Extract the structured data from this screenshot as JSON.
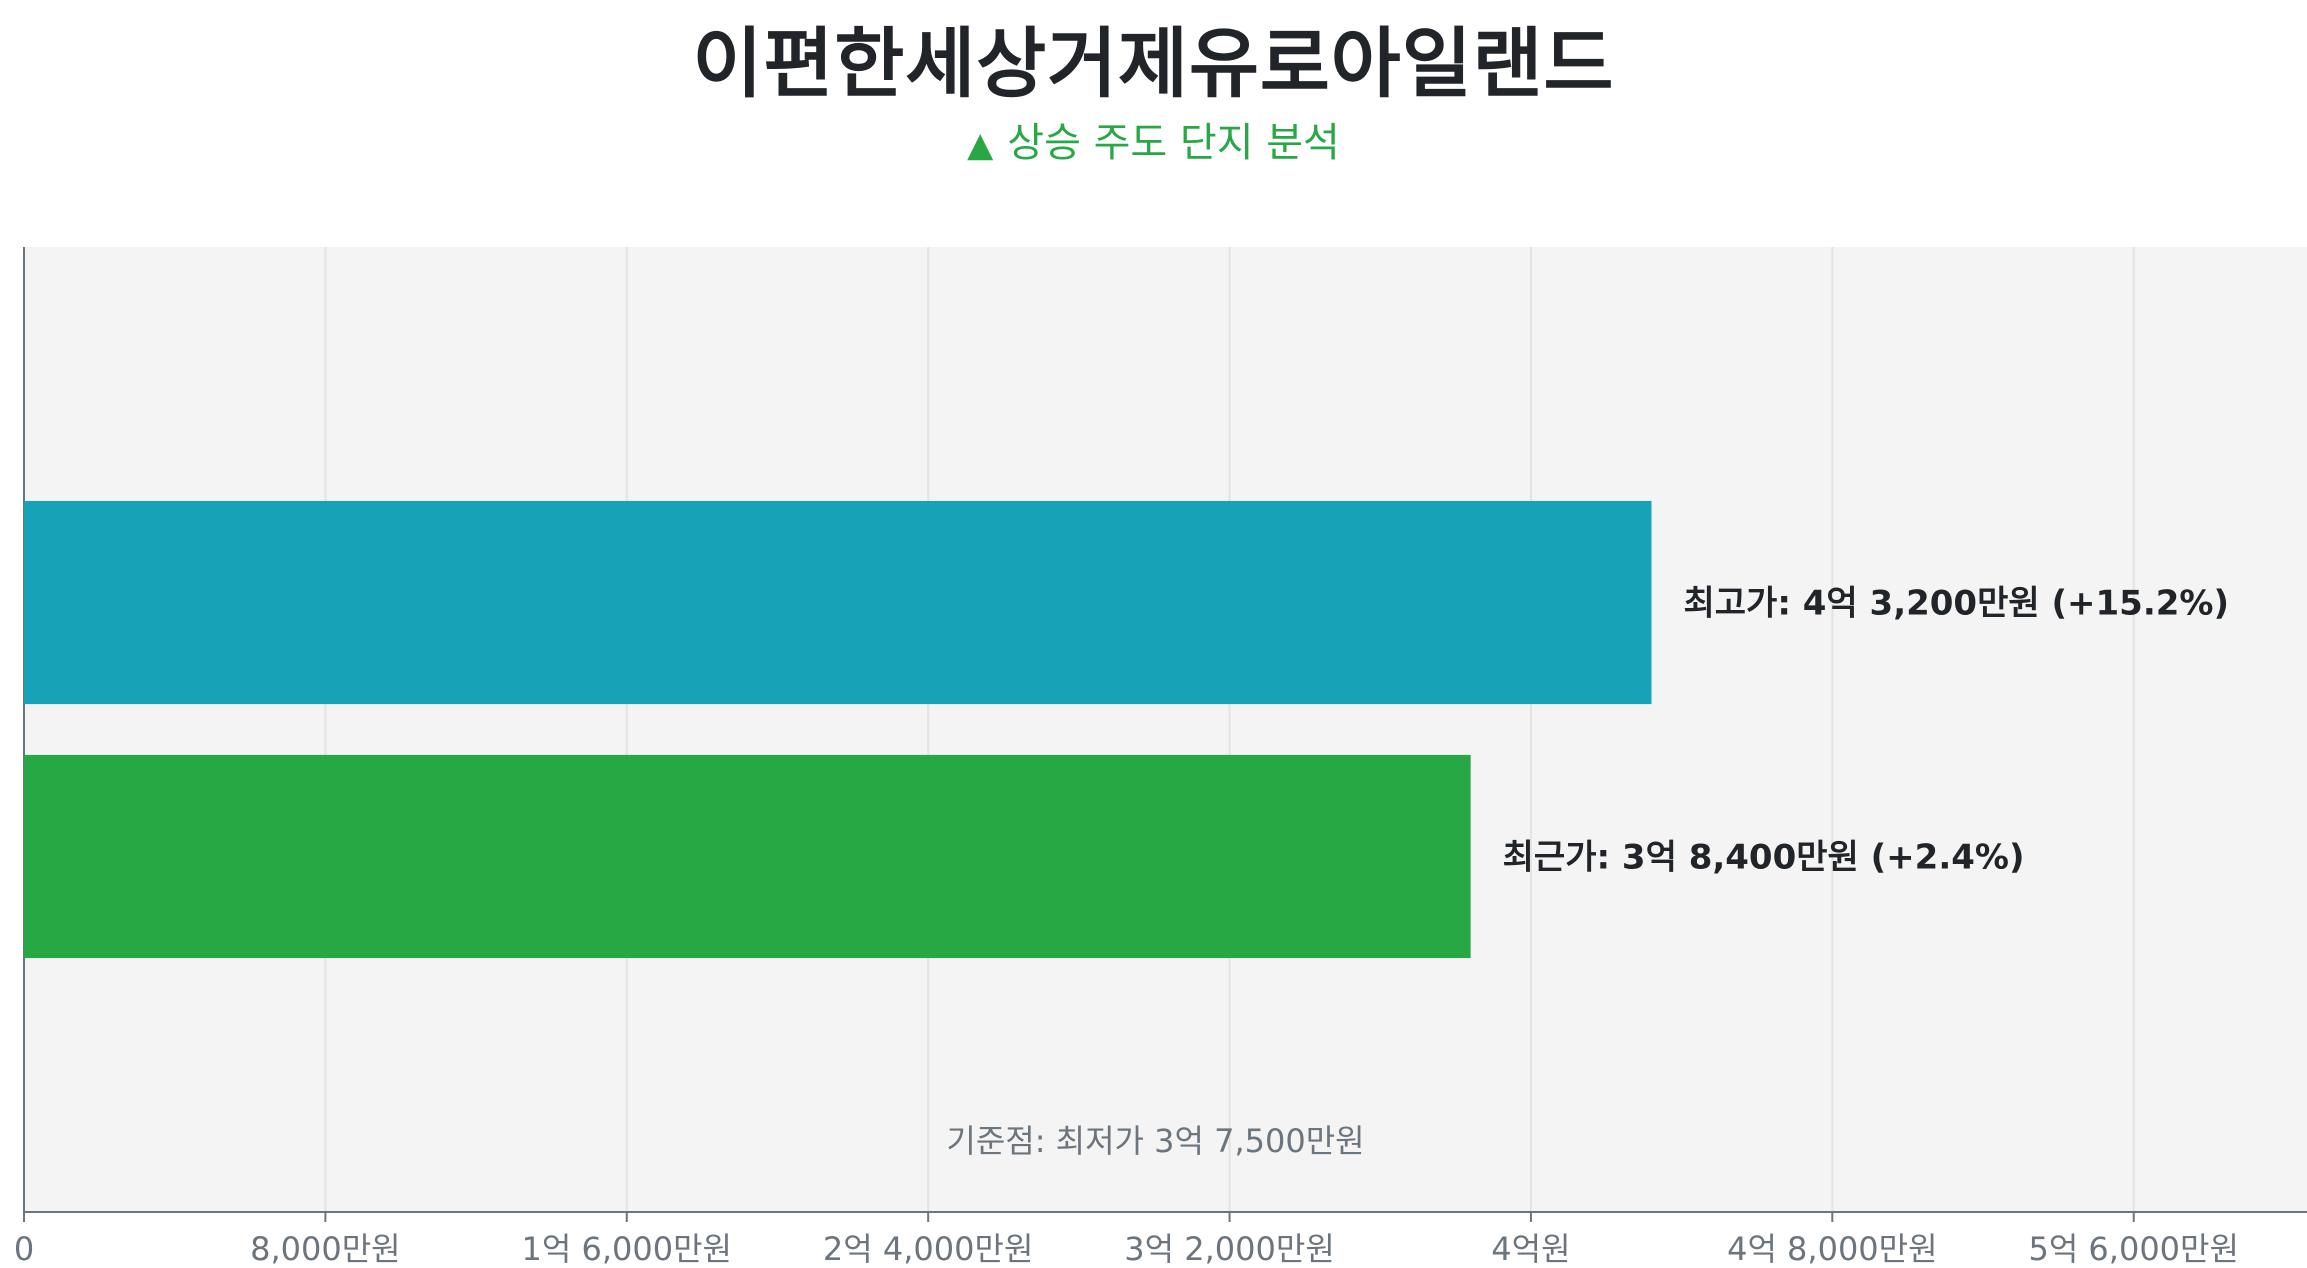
{
  "title": "이편한세상거제유로아일랜드",
  "subtitle": {
    "icon": "triangle-up-icon",
    "text": "상승 주도 단지 분석"
  },
  "chart_data": {
    "type": "bar",
    "orientation": "horizontal",
    "categories": [
      "최고가",
      "최근가"
    ],
    "values": [
      432000000,
      384000000
    ],
    "labels": [
      "최고가: 4억 3,200만원 (+15.2%)",
      "최근가: 3억 8,400만원 (+2.4%)"
    ],
    "colors": [
      "#17a2b8",
      "#28a745"
    ],
    "xlim": [
      0,
      606000000
    ],
    "xticks": [
      {
        "value": 0,
        "label": "0"
      },
      {
        "value": 80000000,
        "label": "8,000만원"
      },
      {
        "value": 160000000,
        "label": "1억 6,000만원"
      },
      {
        "value": 240000000,
        "label": "2억 4,000만원"
      },
      {
        "value": 320000000,
        "label": "3억 2,000만원"
      },
      {
        "value": 400000000,
        "label": "4억원"
      },
      {
        "value": 480000000,
        "label": "4억 8,000만원"
      },
      {
        "value": 560000000,
        "label": "5억 6,000만원"
      }
    ],
    "annotation": "기준점: 최저가 3억 7,500만원",
    "grid": true,
    "background": "#f4f4f4",
    "grid_color": "#e3e3e3",
    "axis_color": "#6c757d"
  }
}
